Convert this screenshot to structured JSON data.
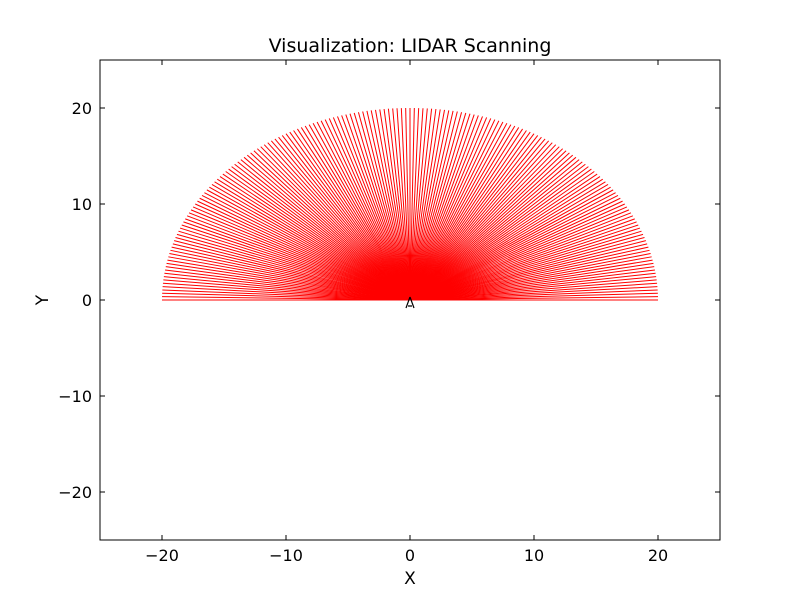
{
  "chart_data": {
    "type": "line",
    "title": "Visualization: LIDAR Scanning",
    "xlabel": "X",
    "ylabel": "Y",
    "xlim": [
      -25,
      25
    ],
    "ylim": [
      -25,
      25
    ],
    "xticks": [
      -20,
      -10,
      0,
      10,
      20
    ],
    "yticks": [
      -20,
      -10,
      0,
      10,
      20
    ],
    "xtick_labels": [
      "−20",
      "−10",
      "0",
      "10",
      "20"
    ],
    "ytick_labels": [
      "−20",
      "−10",
      "0",
      "10",
      "20"
    ],
    "grid": false,
    "origin": [
      0,
      0
    ],
    "beam_range": 20,
    "angle_range_deg": [
      0,
      180
    ],
    "beam_count": 181,
    "beam_color": "#ff0000",
    "sensor_color": "#000000"
  }
}
